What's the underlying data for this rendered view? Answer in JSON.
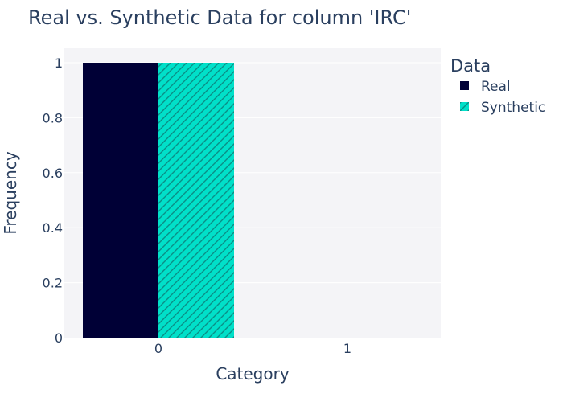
{
  "chart_data": {
    "type": "bar",
    "title": "Real vs. Synthetic Data for column 'IRC'",
    "xlabel": "Category",
    "ylabel": "Frequency",
    "categories": [
      "0",
      "1"
    ],
    "ylim": [
      0,
      1
    ],
    "y_ticks": [
      "0",
      "0.2",
      "0.4",
      "0.6",
      "0.8",
      "1"
    ],
    "grid": true,
    "legend": {
      "title": "Data",
      "placement": "right"
    },
    "series": [
      {
        "name": "Real",
        "values": [
          1,
          0
        ],
        "color": "#000036",
        "pattern": "solid"
      },
      {
        "name": "Synthetic",
        "values": [
          1,
          0
        ],
        "color": "#01e0c9",
        "pattern": "diagonal-hatch"
      }
    ]
  },
  "colors": {
    "plot_background": "#f4f4f7",
    "text": "#2a3f5f",
    "grid": "#ffffff"
  }
}
